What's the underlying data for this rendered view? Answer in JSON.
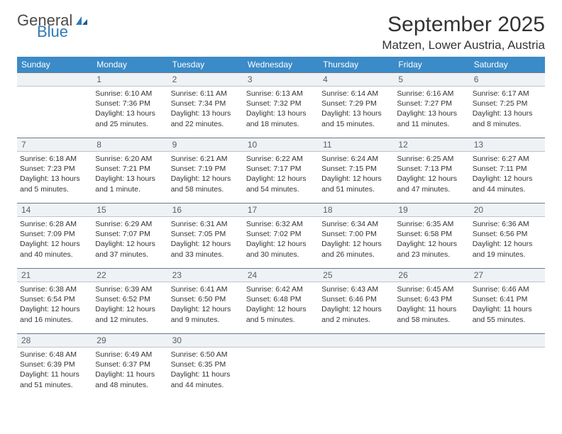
{
  "logo": {
    "text1": "General",
    "text2": "Blue"
  },
  "title": "September 2025",
  "location": "Matzen, Lower Austria, Austria",
  "colors": {
    "header_bg": "#3b8bc8",
    "header_fg": "#ffffff",
    "daynum_bg": "#eef2f5",
    "daynum_fg": "#55606b",
    "rule": "#6b7a8a",
    "text": "#333333",
    "logo_gray": "#4a4a4a",
    "logo_blue": "#2f7ab8"
  },
  "dow": [
    "Sunday",
    "Monday",
    "Tuesday",
    "Wednesday",
    "Thursday",
    "Friday",
    "Saturday"
  ],
  "weeks": [
    {
      "nums": [
        "",
        "1",
        "2",
        "3",
        "4",
        "5",
        "6"
      ],
      "cells": [
        null,
        {
          "sunrise": "Sunrise: 6:10 AM",
          "sunset": "Sunset: 7:36 PM",
          "day1": "Daylight: 13 hours",
          "day2": "and 25 minutes."
        },
        {
          "sunrise": "Sunrise: 6:11 AM",
          "sunset": "Sunset: 7:34 PM",
          "day1": "Daylight: 13 hours",
          "day2": "and 22 minutes."
        },
        {
          "sunrise": "Sunrise: 6:13 AM",
          "sunset": "Sunset: 7:32 PM",
          "day1": "Daylight: 13 hours",
          "day2": "and 18 minutes."
        },
        {
          "sunrise": "Sunrise: 6:14 AM",
          "sunset": "Sunset: 7:29 PM",
          "day1": "Daylight: 13 hours",
          "day2": "and 15 minutes."
        },
        {
          "sunrise": "Sunrise: 6:16 AM",
          "sunset": "Sunset: 7:27 PM",
          "day1": "Daylight: 13 hours",
          "day2": "and 11 minutes."
        },
        {
          "sunrise": "Sunrise: 6:17 AM",
          "sunset": "Sunset: 7:25 PM",
          "day1": "Daylight: 13 hours",
          "day2": "and 8 minutes."
        }
      ]
    },
    {
      "nums": [
        "7",
        "8",
        "9",
        "10",
        "11",
        "12",
        "13"
      ],
      "cells": [
        {
          "sunrise": "Sunrise: 6:18 AM",
          "sunset": "Sunset: 7:23 PM",
          "day1": "Daylight: 13 hours",
          "day2": "and 5 minutes."
        },
        {
          "sunrise": "Sunrise: 6:20 AM",
          "sunset": "Sunset: 7:21 PM",
          "day1": "Daylight: 13 hours",
          "day2": "and 1 minute."
        },
        {
          "sunrise": "Sunrise: 6:21 AM",
          "sunset": "Sunset: 7:19 PM",
          "day1": "Daylight: 12 hours",
          "day2": "and 58 minutes."
        },
        {
          "sunrise": "Sunrise: 6:22 AM",
          "sunset": "Sunset: 7:17 PM",
          "day1": "Daylight: 12 hours",
          "day2": "and 54 minutes."
        },
        {
          "sunrise": "Sunrise: 6:24 AM",
          "sunset": "Sunset: 7:15 PM",
          "day1": "Daylight: 12 hours",
          "day2": "and 51 minutes."
        },
        {
          "sunrise": "Sunrise: 6:25 AM",
          "sunset": "Sunset: 7:13 PM",
          "day1": "Daylight: 12 hours",
          "day2": "and 47 minutes."
        },
        {
          "sunrise": "Sunrise: 6:27 AM",
          "sunset": "Sunset: 7:11 PM",
          "day1": "Daylight: 12 hours",
          "day2": "and 44 minutes."
        }
      ]
    },
    {
      "nums": [
        "14",
        "15",
        "16",
        "17",
        "18",
        "19",
        "20"
      ],
      "cells": [
        {
          "sunrise": "Sunrise: 6:28 AM",
          "sunset": "Sunset: 7:09 PM",
          "day1": "Daylight: 12 hours",
          "day2": "and 40 minutes."
        },
        {
          "sunrise": "Sunrise: 6:29 AM",
          "sunset": "Sunset: 7:07 PM",
          "day1": "Daylight: 12 hours",
          "day2": "and 37 minutes."
        },
        {
          "sunrise": "Sunrise: 6:31 AM",
          "sunset": "Sunset: 7:05 PM",
          "day1": "Daylight: 12 hours",
          "day2": "and 33 minutes."
        },
        {
          "sunrise": "Sunrise: 6:32 AM",
          "sunset": "Sunset: 7:02 PM",
          "day1": "Daylight: 12 hours",
          "day2": "and 30 minutes."
        },
        {
          "sunrise": "Sunrise: 6:34 AM",
          "sunset": "Sunset: 7:00 PM",
          "day1": "Daylight: 12 hours",
          "day2": "and 26 minutes."
        },
        {
          "sunrise": "Sunrise: 6:35 AM",
          "sunset": "Sunset: 6:58 PM",
          "day1": "Daylight: 12 hours",
          "day2": "and 23 minutes."
        },
        {
          "sunrise": "Sunrise: 6:36 AM",
          "sunset": "Sunset: 6:56 PM",
          "day1": "Daylight: 12 hours",
          "day2": "and 19 minutes."
        }
      ]
    },
    {
      "nums": [
        "21",
        "22",
        "23",
        "24",
        "25",
        "26",
        "27"
      ],
      "cells": [
        {
          "sunrise": "Sunrise: 6:38 AM",
          "sunset": "Sunset: 6:54 PM",
          "day1": "Daylight: 12 hours",
          "day2": "and 16 minutes."
        },
        {
          "sunrise": "Sunrise: 6:39 AM",
          "sunset": "Sunset: 6:52 PM",
          "day1": "Daylight: 12 hours",
          "day2": "and 12 minutes."
        },
        {
          "sunrise": "Sunrise: 6:41 AM",
          "sunset": "Sunset: 6:50 PM",
          "day1": "Daylight: 12 hours",
          "day2": "and 9 minutes."
        },
        {
          "sunrise": "Sunrise: 6:42 AM",
          "sunset": "Sunset: 6:48 PM",
          "day1": "Daylight: 12 hours",
          "day2": "and 5 minutes."
        },
        {
          "sunrise": "Sunrise: 6:43 AM",
          "sunset": "Sunset: 6:46 PM",
          "day1": "Daylight: 12 hours",
          "day2": "and 2 minutes."
        },
        {
          "sunrise": "Sunrise: 6:45 AM",
          "sunset": "Sunset: 6:43 PM",
          "day1": "Daylight: 11 hours",
          "day2": "and 58 minutes."
        },
        {
          "sunrise": "Sunrise: 6:46 AM",
          "sunset": "Sunset: 6:41 PM",
          "day1": "Daylight: 11 hours",
          "day2": "and 55 minutes."
        }
      ]
    },
    {
      "nums": [
        "28",
        "29",
        "30",
        "",
        "",
        "",
        ""
      ],
      "cells": [
        {
          "sunrise": "Sunrise: 6:48 AM",
          "sunset": "Sunset: 6:39 PM",
          "day1": "Daylight: 11 hours",
          "day2": "and 51 minutes."
        },
        {
          "sunrise": "Sunrise: 6:49 AM",
          "sunset": "Sunset: 6:37 PM",
          "day1": "Daylight: 11 hours",
          "day2": "and 48 minutes."
        },
        {
          "sunrise": "Sunrise: 6:50 AM",
          "sunset": "Sunset: 6:35 PM",
          "day1": "Daylight: 11 hours",
          "day2": "and 44 minutes."
        },
        null,
        null,
        null,
        null
      ]
    }
  ]
}
